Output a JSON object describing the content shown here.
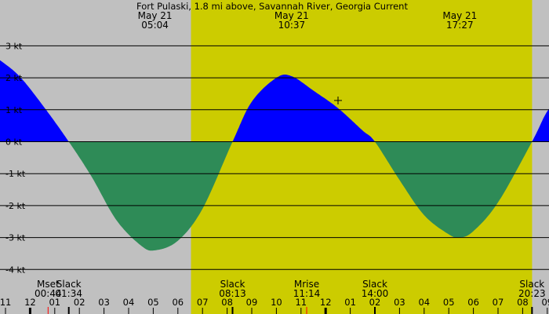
{
  "chart_data": {
    "type": "area",
    "title": "Fort Pulaski, 1.8 mi above, Savannah River, Georgia Current",
    "unit": "kt",
    "ylim": [
      -4,
      3
    ],
    "y_ticks": [
      3,
      2,
      1,
      0,
      -1,
      -2,
      -3,
      -4
    ],
    "y_tick_labels": [
      "3 kt",
      "2 kt",
      "1 kt",
      "0 kt",
      "-1 kt",
      "-2 kt",
      "-3 kt",
      "-4 kt"
    ],
    "x_range_hours": [
      -1,
      33
    ],
    "x_ticks": [
      {
        "hour": -1,
        "label": "11"
      },
      {
        "hour": 0,
        "label": "12"
      },
      {
        "hour": 1,
        "label": "01"
      },
      {
        "hour": 2,
        "label": "02"
      },
      {
        "hour": 3,
        "label": "03"
      },
      {
        "hour": 4,
        "label": "04"
      },
      {
        "hour": 5,
        "label": "05"
      },
      {
        "hour": 6,
        "label": "06"
      },
      {
        "hour": 7,
        "label": "07"
      },
      {
        "hour": 8,
        "label": "08"
      },
      {
        "hour": 9,
        "label": "09"
      },
      {
        "hour": 10,
        "label": "10"
      },
      {
        "hour": 11,
        "label": "11"
      },
      {
        "hour": 12,
        "label": "12"
      },
      {
        "hour": 13,
        "label": "01"
      },
      {
        "hour": 14,
        "label": "02"
      },
      {
        "hour": 15,
        "label": "03"
      },
      {
        "hour": 16,
        "label": "04"
      },
      {
        "hour": 17,
        "label": "05"
      },
      {
        "hour": 18,
        "label": "06"
      },
      {
        "hour": 19,
        "label": "07"
      },
      {
        "hour": 20,
        "label": "08"
      },
      {
        "hour": 21,
        "label": "09"
      }
    ],
    "daylight": {
      "start": "06:32",
      "end": "20:23"
    },
    "top_labels": [
      {
        "date": "May 21",
        "time": "05:04",
        "hour": 5.07
      },
      {
        "date": "May 21",
        "time": "10:37",
        "hour": 10.62
      },
      {
        "date": "May 21",
        "time": "17:27",
        "hour": 17.45
      }
    ],
    "bottom_events": [
      {
        "label": "Mset",
        "time": "00:44",
        "hour": 0.73
      },
      {
        "label": "Slack",
        "time": "01:34",
        "hour": 1.57
      },
      {
        "label": "Slack",
        "time": "08:13",
        "hour": 8.22
      },
      {
        "label": "Mrise",
        "time": "11:14",
        "hour": 11.23
      },
      {
        "label": "Slack",
        "time": "14:00",
        "hour": 14.0
      },
      {
        "label": "Slack",
        "time": "20:23",
        "hour": 20.38
      }
    ],
    "series": [
      {
        "kind": "current",
        "x_hours": [
          -1.5,
          -0.5,
          0.5,
          1.57,
          2.5,
          3.5,
          4.5,
          5.07,
          6.0,
          7.0,
          8.22,
          9.0,
          10.0,
          10.62,
          11.5,
          12.5,
          13.5,
          14.0,
          15.0,
          16.0,
          17.0,
          17.45,
          18.0,
          19.0,
          20.38,
          21.0,
          21.7
        ],
        "y_kt": [
          2.7,
          2.1,
          1.15,
          0,
          -1.1,
          -2.45,
          -3.25,
          -3.4,
          -3.1,
          -2.1,
          0,
          1.25,
          2.0,
          2.05,
          1.6,
          1.05,
          0.35,
          0,
          -1.2,
          -2.3,
          -2.9,
          -3.0,
          -2.8,
          -1.9,
          0,
          0.95,
          1.6
        ]
      }
    ],
    "colors": {
      "background": "#c0c0c0",
      "daylight": "#cccc00",
      "flood": "#0000ff",
      "ebb": "#2e8b57",
      "grid": "#000000",
      "moon_tick": "#ff0000"
    }
  }
}
